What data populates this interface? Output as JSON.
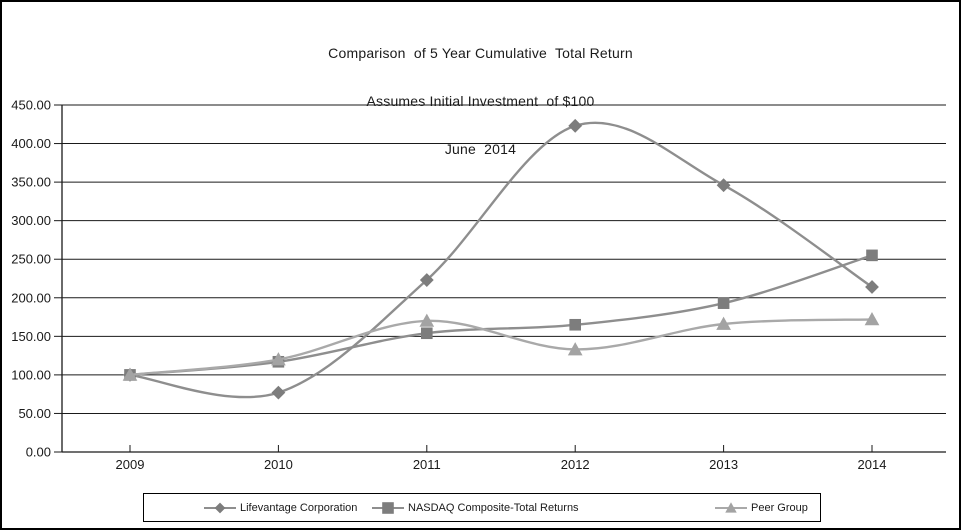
{
  "chart_data": {
    "type": "line",
    "smoothed": true,
    "title_lines": [
      "Comparison  of 5 Year Cumulative  Total Return",
      "Assumes Initial Investment  of $100",
      "June  2014"
    ],
    "categories": [
      "2009",
      "2010",
      "2011",
      "2012",
      "2013",
      "2014"
    ],
    "series": [
      {
        "name": "Lifevantage Corporation",
        "marker": "diamond",
        "line_color": "#8e8e8e",
        "marker_color": "#7d7d7d",
        "values": [
          100.0,
          77.0,
          223.0,
          423.0,
          346.0,
          214.0
        ]
      },
      {
        "name": "NASDAQ Composite-Total Returns",
        "marker": "square",
        "line_color": "#8e8e8e",
        "marker_color": "#7d7d7d",
        "values": [
          100.0,
          117.0,
          154.0,
          165.0,
          193.0,
          255.0
        ]
      },
      {
        "name": "Peer Group",
        "marker": "triangle",
        "line_color": "#a9a9a9",
        "marker_color": "#a3a3a3",
        "values": [
          100.0,
          120.0,
          170.0,
          133.0,
          166.0,
          172.0
        ]
      }
    ],
    "ylim": [
      0,
      450
    ],
    "ytick_step": 50,
    "yticks": [
      "0.00",
      "50.00",
      "100.00",
      "150.00",
      "200.00",
      "250.00",
      "300.00",
      "350.00",
      "400.00",
      "450.00"
    ],
    "grid": true,
    "legend_position": "bottom",
    "axis_color": "#1a1a1a",
    "text_color": "#1a1a1a"
  }
}
